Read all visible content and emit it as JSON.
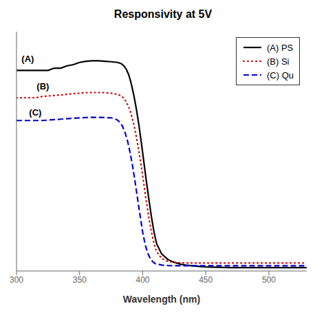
{
  "chart_data": {
    "type": "line",
    "title": "Responsivity at 5V",
    "xlabel": "Wavelength (nm)",
    "xlim": [
      300,
      530
    ],
    "ylim": [
      0,
      1.05
    ],
    "xticks": [
      300,
      350,
      400,
      450,
      500
    ],
    "yticks": [],
    "tick_labels": "x",
    "grid": false,
    "legend": "upper right",
    "series": [
      {
        "name": "(A) PS",
        "color": "#000000",
        "line_style": "solid",
        "x": [
          300,
          305,
          310,
          315,
          320,
          325,
          330,
          335,
          340,
          345,
          350,
          355,
          360,
          365,
          370,
          375,
          380,
          383,
          385,
          387,
          389,
          391,
          393,
          395,
          397,
          399,
          401,
          403,
          405,
          407,
          409,
          411,
          415,
          420,
          425,
          430,
          435,
          440,
          445,
          450,
          455,
          460,
          470,
          480,
          490,
          500,
          510,
          520,
          530
        ],
        "values": [
          0.88,
          0.88,
          0.88,
          0.88,
          0.88,
          0.88,
          0.89,
          0.89,
          0.9,
          0.905,
          0.915,
          0.92,
          0.922,
          0.922,
          0.92,
          0.918,
          0.915,
          0.91,
          0.9,
          0.885,
          0.86,
          0.82,
          0.77,
          0.71,
          0.64,
          0.56,
          0.475,
          0.39,
          0.31,
          0.235,
          0.17,
          0.12,
          0.075,
          0.05,
          0.038,
          0.03,
          0.025,
          0.022,
          0.02,
          0.018,
          0.017,
          0.016,
          0.015,
          0.015,
          0.015,
          0.015,
          0.015,
          0.015,
          0.015
        ]
      },
      {
        "name": "(B) Si",
        "color": "#cc0000",
        "line_style": "dotted",
        "x": [
          300,
          305,
          310,
          315,
          320,
          325,
          330,
          335,
          340,
          345,
          350,
          355,
          360,
          365,
          370,
          375,
          380,
          383,
          385,
          387,
          389,
          391,
          393,
          395,
          397,
          399,
          401,
          403,
          405,
          407,
          409,
          411,
          415,
          420,
          425,
          430,
          435,
          440,
          445,
          450,
          455,
          460,
          470,
          480,
          490,
          500,
          510,
          520,
          530
        ],
        "values": [
          0.76,
          0.76,
          0.76,
          0.76,
          0.765,
          0.768,
          0.77,
          0.772,
          0.775,
          0.778,
          0.78,
          0.782,
          0.783,
          0.783,
          0.782,
          0.78,
          0.775,
          0.768,
          0.758,
          0.742,
          0.718,
          0.685,
          0.642,
          0.588,
          0.525,
          0.455,
          0.378,
          0.3,
          0.23,
          0.17,
          0.12,
          0.085,
          0.055,
          0.042,
          0.038,
          0.036,
          0.035,
          0.035,
          0.035,
          0.035,
          0.035,
          0.035,
          0.035,
          0.035,
          0.035,
          0.035,
          0.035,
          0.035,
          0.035
        ]
      },
      {
        "name": "(C) Qu",
        "color": "#0000cc",
        "line_style": "dashed",
        "x": [
          300,
          305,
          310,
          315,
          320,
          325,
          330,
          335,
          340,
          345,
          350,
          355,
          360,
          365,
          370,
          375,
          378,
          380,
          382,
          384,
          386,
          388,
          390,
          392,
          394,
          396,
          398,
          400,
          402,
          404,
          406,
          408,
          410,
          415,
          420,
          425,
          430,
          435,
          440,
          445,
          450,
          455,
          460,
          470,
          480,
          490,
          500,
          510,
          520,
          530
        ],
        "values": [
          0.66,
          0.66,
          0.66,
          0.66,
          0.66,
          0.662,
          0.664,
          0.666,
          0.668,
          0.67,
          0.672,
          0.673,
          0.674,
          0.674,
          0.673,
          0.672,
          0.668,
          0.662,
          0.652,
          0.635,
          0.608,
          0.57,
          0.52,
          0.46,
          0.39,
          0.315,
          0.24,
          0.17,
          0.115,
          0.078,
          0.055,
          0.04,
          0.032,
          0.026,
          0.024,
          0.023,
          0.023,
          0.023,
          0.023,
          0.023,
          0.023,
          0.023,
          0.023,
          0.023,
          0.023,
          0.023,
          0.023,
          0.023,
          0.023,
          0.023
        ]
      }
    ],
    "annotations": [
      {
        "text": "(A)",
        "x": 304,
        "y": 0.93
      },
      {
        "text": "(B)",
        "x": 316,
        "y": 0.81
      },
      {
        "text": "(C)",
        "x": 310,
        "y": 0.695
      }
    ]
  }
}
